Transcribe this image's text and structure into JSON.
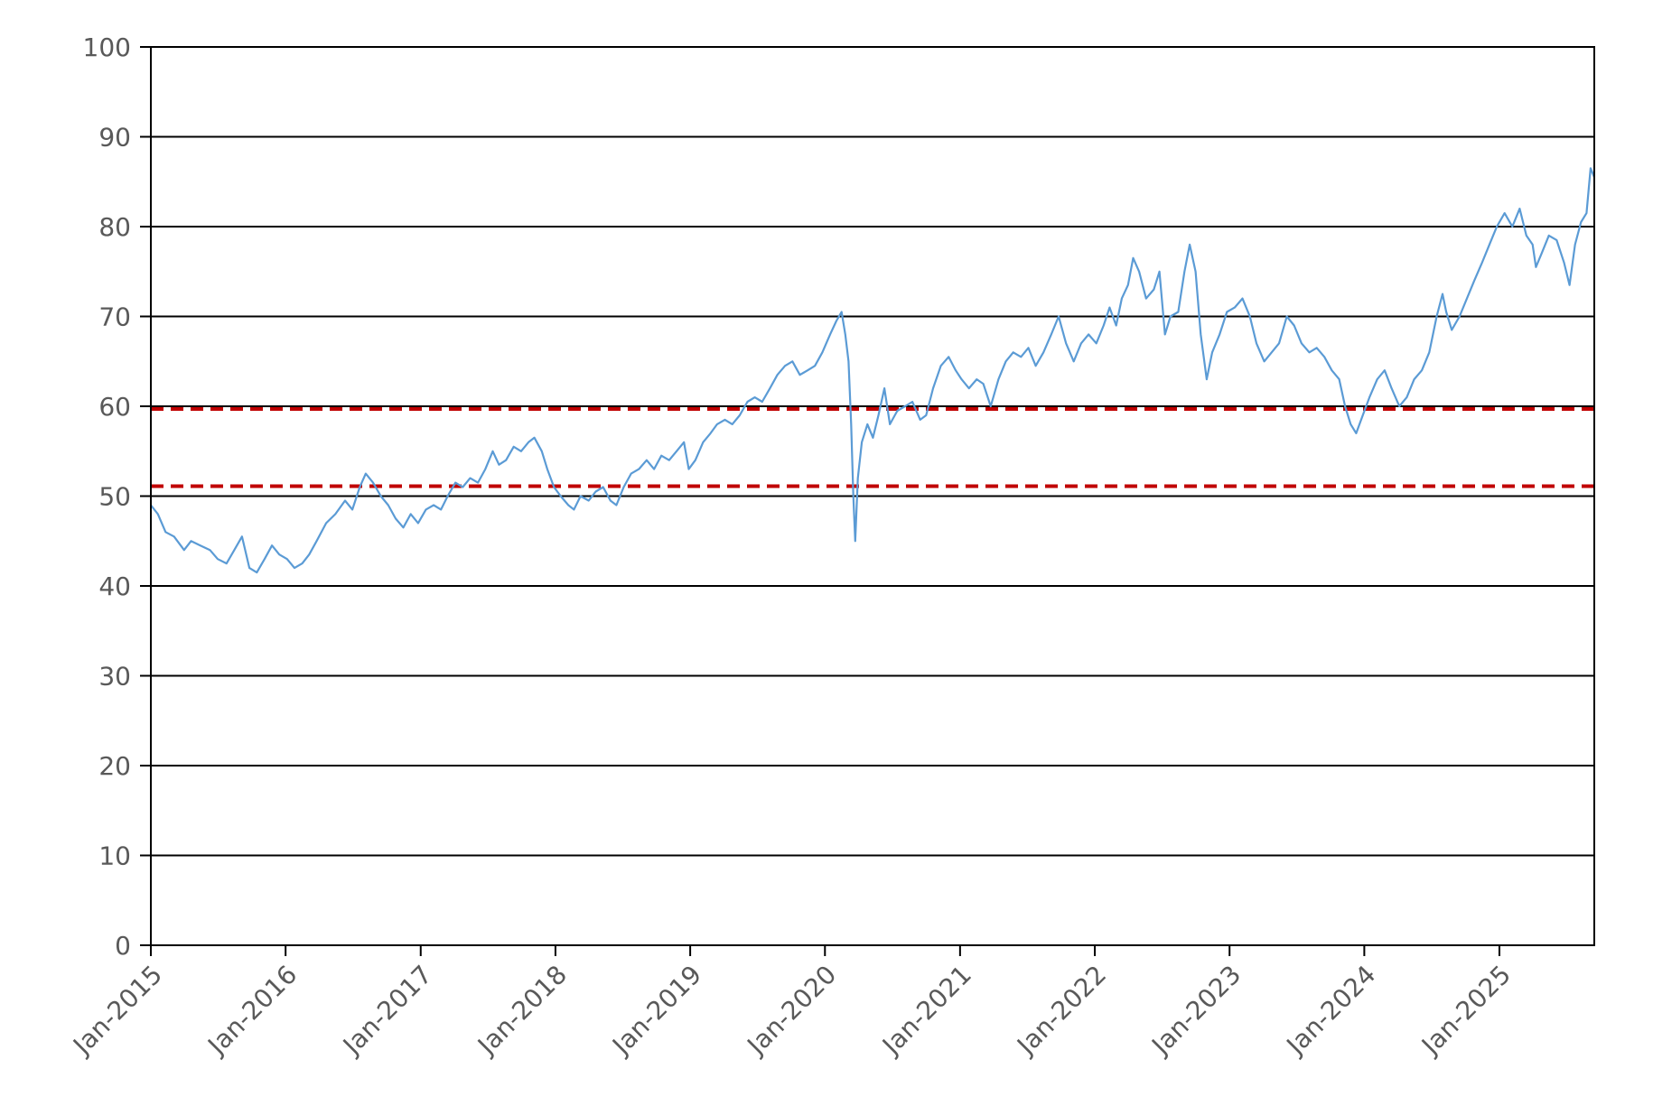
{
  "chart_data": {
    "type": "line",
    "title": "",
    "xlabel": "",
    "ylabel": "",
    "ylim": [
      0,
      100
    ],
    "y_ticks": [
      "0",
      "10",
      "20",
      "30",
      "40",
      "50",
      "60",
      "70",
      "80",
      "90",
      "100"
    ],
    "x_ticks": [
      "Jan-2015",
      "Jan-2016",
      "Jan-2017",
      "Jan-2018",
      "Jan-2019",
      "Jan-2020",
      "Jan-2021",
      "Jan-2022",
      "Jan-2023",
      "Jan-2024",
      "Jan-2025"
    ],
    "xlim": [
      "2015-01-01",
      "2025-09-15"
    ],
    "grid": true,
    "legend": "none",
    "series": [
      {
        "color": "#5B9BD5",
        "points": [
          [
            "2015-01-01",
            49
          ],
          [
            "2015-01-20",
            48
          ],
          [
            "2015-02-10",
            46
          ],
          [
            "2015-03-05",
            45.5
          ],
          [
            "2015-04-01",
            44
          ],
          [
            "2015-04-20",
            45
          ],
          [
            "2015-05-15",
            44.5
          ],
          [
            "2015-06-10",
            44
          ],
          [
            "2015-07-01",
            43
          ],
          [
            "2015-07-25",
            42.5
          ],
          [
            "2015-08-15",
            44
          ],
          [
            "2015-09-05",
            45.5
          ],
          [
            "2015-09-25",
            42
          ],
          [
            "2015-10-15",
            41.5
          ],
          [
            "2015-11-05",
            43
          ],
          [
            "2015-11-25",
            44.5
          ],
          [
            "2015-12-15",
            43.5
          ],
          [
            "2016-01-05",
            43
          ],
          [
            "2016-01-25",
            42
          ],
          [
            "2016-02-15",
            42.5
          ],
          [
            "2016-03-05",
            43.5
          ],
          [
            "2016-03-25",
            45
          ],
          [
            "2016-04-20",
            47
          ],
          [
            "2016-05-15",
            48
          ],
          [
            "2016-06-10",
            49.5
          ],
          [
            "2016-06-30",
            48.5
          ],
          [
            "2016-07-20",
            51
          ],
          [
            "2016-08-05",
            52.5
          ],
          [
            "2016-08-25",
            51.5
          ],
          [
            "2016-09-15",
            50
          ],
          [
            "2016-10-05",
            49
          ],
          [
            "2016-10-25",
            47.5
          ],
          [
            "2016-11-15",
            46.5
          ],
          [
            "2016-12-05",
            48
          ],
          [
            "2016-12-25",
            47
          ],
          [
            "2017-01-15",
            48.5
          ],
          [
            "2017-02-05",
            49
          ],
          [
            "2017-02-25",
            48.5
          ],
          [
            "2017-03-15",
            50
          ],
          [
            "2017-04-05",
            51.5
          ],
          [
            "2017-04-25",
            51
          ],
          [
            "2017-05-15",
            52
          ],
          [
            "2017-06-05",
            51.5
          ],
          [
            "2017-06-25",
            53
          ],
          [
            "2017-07-15",
            55
          ],
          [
            "2017-08-01",
            53.5
          ],
          [
            "2017-08-20",
            54
          ],
          [
            "2017-09-10",
            55.5
          ],
          [
            "2017-09-30",
            55
          ],
          [
            "2017-10-20",
            56
          ],
          [
            "2017-11-05",
            56.5
          ],
          [
            "2017-11-25",
            55
          ],
          [
            "2017-12-10",
            53
          ],
          [
            "2017-12-28",
            51
          ],
          [
            "2018-01-15",
            50
          ],
          [
            "2018-02-05",
            49
          ],
          [
            "2018-02-20",
            48.5
          ],
          [
            "2018-03-10",
            50
          ],
          [
            "2018-04-01",
            49.5
          ],
          [
            "2018-04-20",
            50.5
          ],
          [
            "2018-05-10",
            51
          ],
          [
            "2018-05-30",
            49.5
          ],
          [
            "2018-06-15",
            49
          ],
          [
            "2018-07-05",
            51
          ],
          [
            "2018-07-25",
            52.5
          ],
          [
            "2018-08-15",
            53
          ],
          [
            "2018-09-05",
            54
          ],
          [
            "2018-09-25",
            53
          ],
          [
            "2018-10-15",
            54.5
          ],
          [
            "2018-11-05",
            54
          ],
          [
            "2018-11-25",
            55
          ],
          [
            "2018-12-15",
            56
          ],
          [
            "2018-12-28",
            53
          ],
          [
            "2019-01-15",
            54
          ],
          [
            "2019-02-05",
            56
          ],
          [
            "2019-02-25",
            57
          ],
          [
            "2019-03-15",
            58
          ],
          [
            "2019-04-05",
            58.5
          ],
          [
            "2019-04-25",
            58
          ],
          [
            "2019-05-15",
            59
          ],
          [
            "2019-06-05",
            60.5
          ],
          [
            "2019-06-25",
            61
          ],
          [
            "2019-07-15",
            60.5
          ],
          [
            "2019-08-05",
            62
          ],
          [
            "2019-08-25",
            63.5
          ],
          [
            "2019-09-15",
            64.5
          ],
          [
            "2019-10-05",
            65
          ],
          [
            "2019-10-25",
            63.5
          ],
          [
            "2019-11-15",
            64
          ],
          [
            "2019-12-05",
            64.5
          ],
          [
            "2019-12-25",
            66
          ],
          [
            "2020-01-15",
            68
          ],
          [
            "2020-02-01",
            69.5
          ],
          [
            "2020-02-15",
            70.5
          ],
          [
            "2020-02-25",
            68
          ],
          [
            "2020-03-05",
            65
          ],
          [
            "2020-03-12",
            58
          ],
          [
            "2020-03-18",
            50
          ],
          [
            "2020-03-23",
            45
          ],
          [
            "2020-03-30",
            52
          ],
          [
            "2020-04-10",
            56
          ],
          [
            "2020-04-25",
            58
          ],
          [
            "2020-05-10",
            56.5
          ],
          [
            "2020-05-25",
            59
          ],
          [
            "2020-06-10",
            62
          ],
          [
            "2020-06-25",
            58
          ],
          [
            "2020-07-15",
            59.5
          ],
          [
            "2020-08-05",
            60
          ],
          [
            "2020-08-25",
            60.5
          ],
          [
            "2020-09-15",
            58.5
          ],
          [
            "2020-10-01",
            59
          ],
          [
            "2020-10-20",
            62
          ],
          [
            "2020-11-10",
            64.5
          ],
          [
            "2020-12-01",
            65.5
          ],
          [
            "2020-12-20",
            64
          ],
          [
            "2021-01-05",
            63
          ],
          [
            "2021-01-25",
            62
          ],
          [
            "2021-02-15",
            63
          ],
          [
            "2021-03-05",
            62.5
          ],
          [
            "2021-03-25",
            60
          ],
          [
            "2021-04-15",
            63
          ],
          [
            "2021-05-05",
            65
          ],
          [
            "2021-05-25",
            66
          ],
          [
            "2021-06-15",
            65.5
          ],
          [
            "2021-07-05",
            66.5
          ],
          [
            "2021-07-25",
            64.5
          ],
          [
            "2021-08-15",
            66
          ],
          [
            "2021-09-05",
            68
          ],
          [
            "2021-09-25",
            70
          ],
          [
            "2021-10-15",
            67
          ],
          [
            "2021-11-05",
            65
          ],
          [
            "2021-11-25",
            67
          ],
          [
            "2021-12-15",
            68
          ],
          [
            "2022-01-05",
            67
          ],
          [
            "2022-01-25",
            69
          ],
          [
            "2022-02-10",
            71
          ],
          [
            "2022-02-28",
            69
          ],
          [
            "2022-03-15",
            72
          ],
          [
            "2022-04-01",
            73.5
          ],
          [
            "2022-04-15",
            76.5
          ],
          [
            "2022-05-01",
            75
          ],
          [
            "2022-05-20",
            72
          ],
          [
            "2022-06-10",
            73
          ],
          [
            "2022-06-25",
            75
          ],
          [
            "2022-07-10",
            68
          ],
          [
            "2022-07-25",
            70
          ],
          [
            "2022-08-15",
            70.5
          ],
          [
            "2022-09-01",
            75
          ],
          [
            "2022-09-15",
            78
          ],
          [
            "2022-10-01",
            75
          ],
          [
            "2022-10-15",
            68
          ],
          [
            "2022-10-31",
            63
          ],
          [
            "2022-11-15",
            66
          ],
          [
            "2022-12-05",
            68
          ],
          [
            "2022-12-25",
            70.5
          ],
          [
            "2023-01-15",
            71
          ],
          [
            "2023-02-05",
            72
          ],
          [
            "2023-02-25",
            70
          ],
          [
            "2023-03-15",
            67
          ],
          [
            "2023-04-05",
            65
          ],
          [
            "2023-04-25",
            66
          ],
          [
            "2023-05-15",
            67
          ],
          [
            "2023-06-05",
            70
          ],
          [
            "2023-06-25",
            69
          ],
          [
            "2023-07-15",
            67
          ],
          [
            "2023-08-05",
            66
          ],
          [
            "2023-08-25",
            66.5
          ],
          [
            "2023-09-15",
            65.5
          ],
          [
            "2023-10-05",
            64
          ],
          [
            "2023-10-25",
            63
          ],
          [
            "2023-11-10",
            60
          ],
          [
            "2023-11-25",
            58
          ],
          [
            "2023-12-10",
            57
          ],
          [
            "2023-12-28",
            59
          ],
          [
            "2024-01-15",
            61
          ],
          [
            "2024-02-05",
            63
          ],
          [
            "2024-02-25",
            64
          ],
          [
            "2024-03-15",
            62
          ],
          [
            "2024-04-05",
            60
          ],
          [
            "2024-04-25",
            61
          ],
          [
            "2024-05-15",
            63
          ],
          [
            "2024-06-05",
            64
          ],
          [
            "2024-06-25",
            66
          ],
          [
            "2024-07-15",
            70
          ],
          [
            "2024-07-31",
            72.5
          ],
          [
            "2024-08-10",
            70.5
          ],
          [
            "2024-08-25",
            68.5
          ],
          [
            "2024-09-15",
            70
          ],
          [
            "2024-10-05",
            72
          ],
          [
            "2024-10-25",
            74
          ],
          [
            "2024-11-15",
            76
          ],
          [
            "2024-12-05",
            78
          ],
          [
            "2024-12-25",
            80
          ],
          [
            "2025-01-15",
            81.5
          ],
          [
            "2025-02-05",
            80
          ],
          [
            "2025-02-25",
            82
          ],
          [
            "2025-03-15",
            79
          ],
          [
            "2025-04-01",
            78
          ],
          [
            "2025-04-10",
            75.5
          ],
          [
            "2025-04-25",
            77
          ],
          [
            "2025-05-15",
            79
          ],
          [
            "2025-06-05",
            78.5
          ],
          [
            "2025-06-25",
            76
          ],
          [
            "2025-07-10",
            73.5
          ],
          [
            "2025-07-25",
            78
          ],
          [
            "2025-08-10",
            80.5
          ],
          [
            "2025-08-25",
            81.5
          ],
          [
            "2025-09-05",
            86.5
          ],
          [
            "2025-09-15",
            85.5
          ]
        ]
      }
    ],
    "reference_lines": [
      {
        "y": 59.7,
        "style": "dashed",
        "color": "#C00000"
      },
      {
        "y": 51.1,
        "style": "dashed",
        "color": "#C00000"
      }
    ]
  }
}
